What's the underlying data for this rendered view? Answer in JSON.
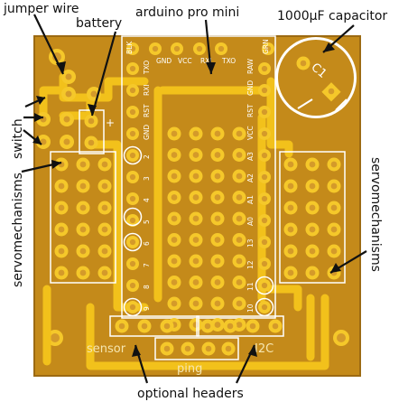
{
  "callouts": {
    "jumper_wire": "jumper wire",
    "battery": "battery",
    "arduino": "arduino pro mini",
    "capacitor": "1000µF capacitor",
    "switch": "switch",
    "servo_left": "servomechanisms",
    "servo_right": "servomechanisms",
    "optional_headers": "optional headers"
  },
  "silkscreen": {
    "sensor": "sensor",
    "ping": "ping",
    "i2c": "I2C",
    "cap_ref": "C1",
    "battery_plus": "+",
    "top_pins": [
      "BLK",
      "GND",
      "VCC",
      "RXI",
      "TXO",
      "GRN"
    ],
    "left_pins": [
      "TXO",
      "RXI",
      "RST",
      "GND",
      "2",
      "3",
      "4",
      "5",
      "6",
      "7",
      "8",
      "9"
    ],
    "right_pins": [
      "RAW",
      "GND",
      "RST",
      "VCC",
      "A3",
      "A2",
      "A1",
      "A0",
      "13",
      "12",
      "11",
      "10"
    ]
  },
  "colors": {
    "board": "#c48a1a",
    "board_edge": "#9c6a12",
    "copper": "#f2c11b",
    "pad": "#f5c82a",
    "drill": "#d49a2a",
    "silk": "#ffffff",
    "text": "#111111"
  }
}
